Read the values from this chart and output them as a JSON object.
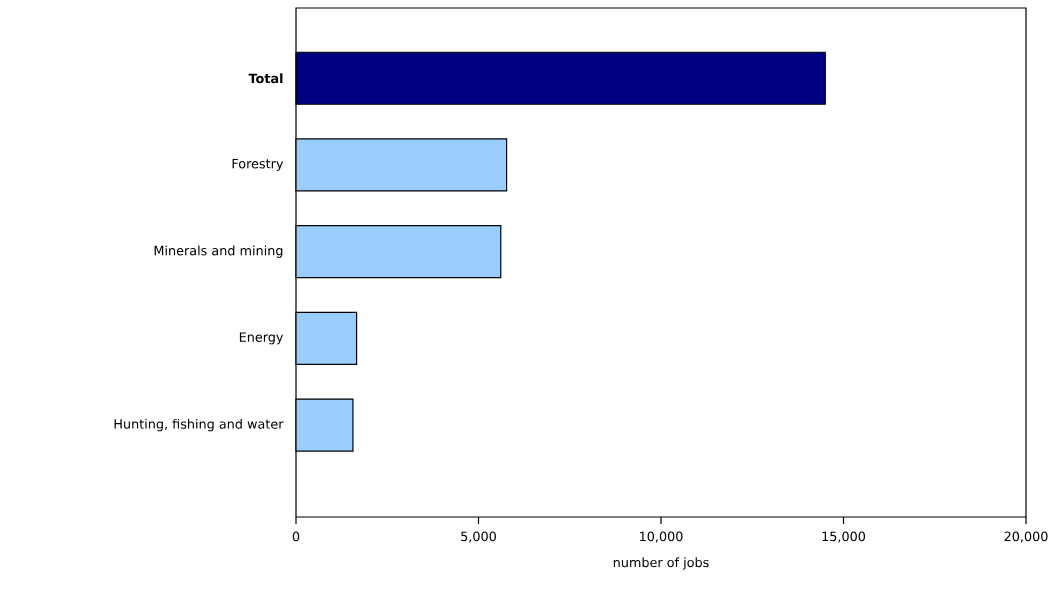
{
  "chart_data": {
    "type": "bar",
    "orientation": "horizontal",
    "xlabel": "number of jobs",
    "categories": [
      "Total",
      "Forestry",
      "Minerals and mining",
      "Energy",
      "Hunting, fishing and water"
    ],
    "values": [
      14500,
      5770,
      5610,
      1660,
      1560
    ],
    "colors": [
      "#000080",
      "#99ccff",
      "#99ccff",
      "#99ccff",
      "#99ccff"
    ],
    "xlim": [
      0,
      20000
    ],
    "xticks": [
      {
        "value": 0,
        "label": "0"
      },
      {
        "value": 5000,
        "label": "5,000"
      },
      {
        "value": 10000,
        "label": "10,000"
      },
      {
        "value": 15000,
        "label": "15,000"
      },
      {
        "value": 20000,
        "label": "20,000"
      }
    ],
    "grid": false
  }
}
